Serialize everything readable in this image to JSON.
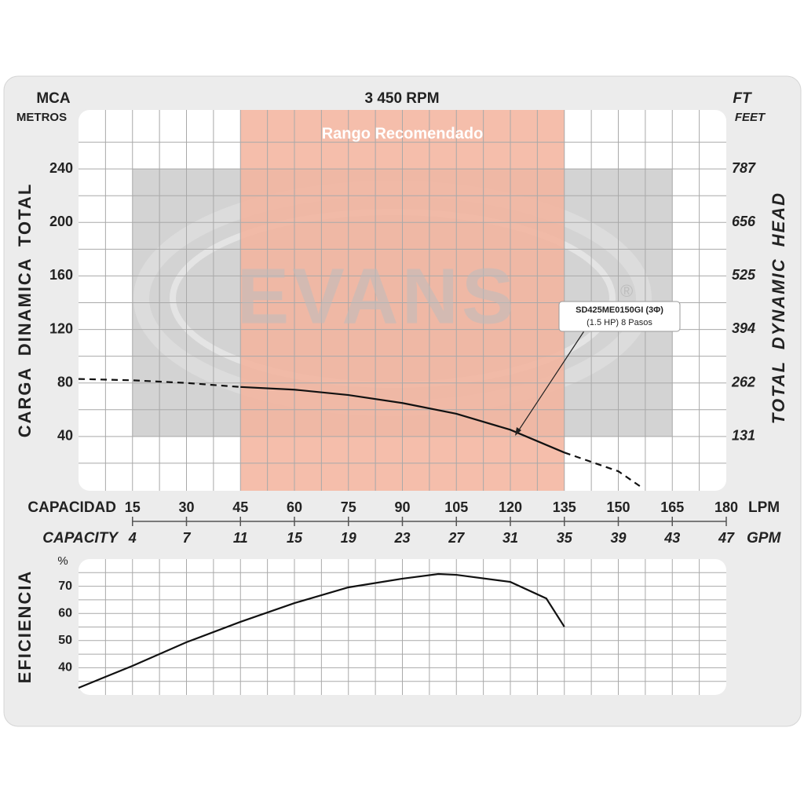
{
  "chart_data": [
    {
      "type": "line",
      "title": "3 450 RPM",
      "y_unit": "MCA",
      "y_unit_sub": "METROS",
      "y_label": "CARGA DINAMICA TOTAL",
      "y2_unit": "FT",
      "y2_unit_sub": "FEET",
      "y2_label": "TOTAL DYNAMIC HEAD",
      "x_label": "CAPACIDAD",
      "x_unit": "LPM",
      "x2_label": "CAPACITY",
      "x2_unit": "GPM",
      "watermark": "EVANS",
      "watermark_mark": "®",
      "highlight": {
        "label": "Rango Recomendado",
        "xlim": [
          45,
          135
        ],
        "color": "#f3b39c"
      },
      "annotation": [
        "SD425ME0150GI (3Φ)",
        "(1.5 HP) 8 Pasos"
      ],
      "x": [
        0,
        15,
        30,
        45,
        60,
        75,
        90,
        105,
        120,
        135,
        150,
        157
      ],
      "series": [
        {
          "values": [
            83,
            82,
            80,
            77,
            75,
            71,
            65,
            57,
            45,
            28,
            14,
            1
          ],
          "color": "#111111",
          "solid_range": [
            45,
            135
          ]
        }
      ],
      "xlim": [
        0,
        180
      ],
      "xticks": [
        15,
        30,
        45,
        60,
        75,
        90,
        105,
        120,
        135,
        150,
        165,
        180
      ],
      "x2ticks": [
        4,
        7,
        11,
        15,
        19,
        23,
        27,
        31,
        35,
        39,
        43,
        47
      ],
      "ylim": [
        0,
        280
      ],
      "yticks": [
        40,
        80,
        120,
        160,
        200,
        240
      ],
      "y2lim": [
        0,
        918.6
      ],
      "y2ticks": [
        131,
        262,
        394,
        525,
        656,
        787
      ],
      "grid": true,
      "x_grid_step": 7.5,
      "y_grid_step": 20
    },
    {
      "type": "line",
      "y_label": "EFICIENCIA",
      "y_unit": "%",
      "x": [
        0,
        15,
        30,
        45,
        60,
        75,
        90,
        100,
        105,
        120,
        130,
        135
      ],
      "series": [
        {
          "values": [
            32.6,
            40.7,
            49.4,
            56.9,
            63.8,
            69.6,
            72.8,
            74.5,
            74.2,
            71.6,
            65.5,
            55.1
          ],
          "color": "#111111"
        }
      ],
      "xlim": [
        0,
        180
      ],
      "ylim": [
        30,
        80
      ],
      "yticks": [
        40,
        50,
        60,
        70
      ],
      "grid": true,
      "x_grid_step": 7.5,
      "y_grid_step": 5
    }
  ]
}
